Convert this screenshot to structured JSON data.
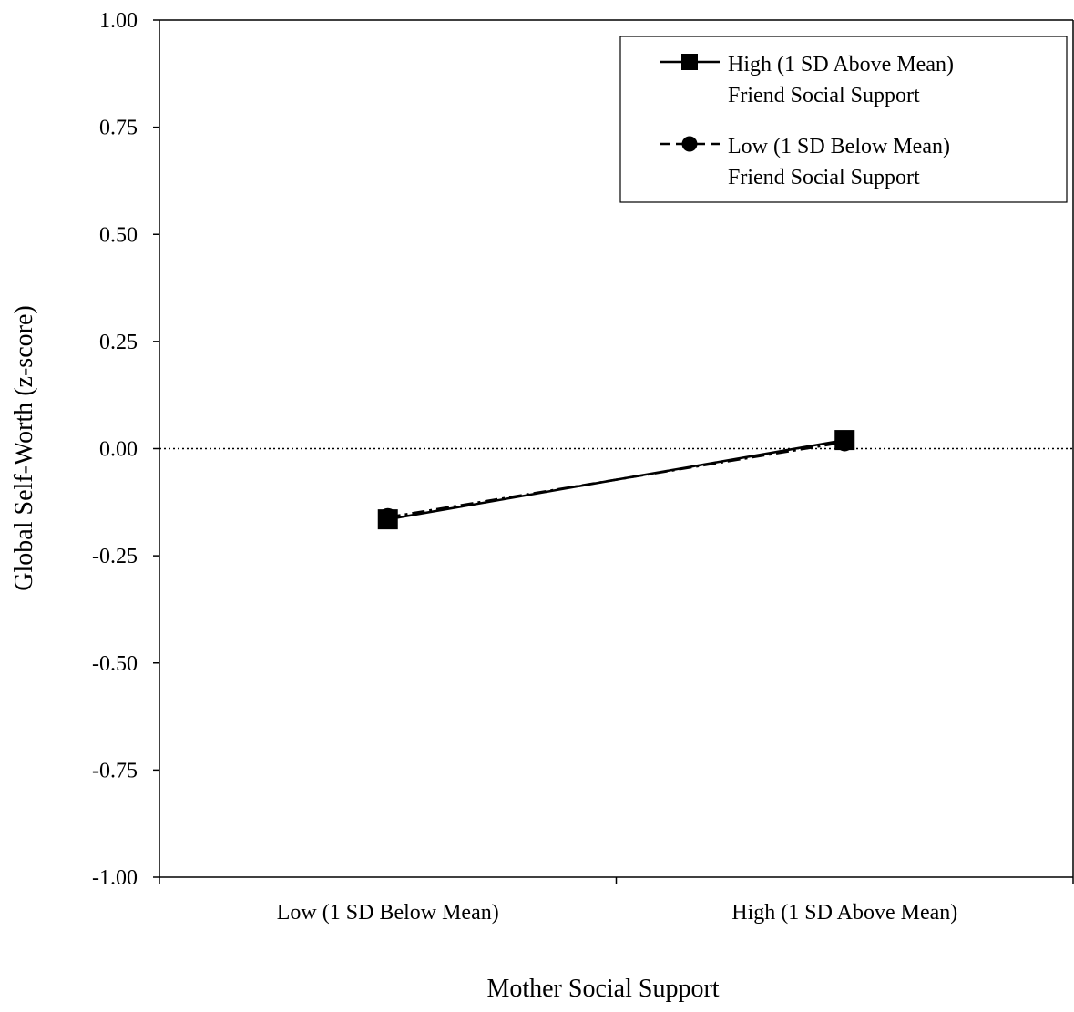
{
  "chart_data": {
    "type": "line",
    "title": "",
    "xlabel": "Mother Social Support",
    "ylabel": "Global Self-Worth (z-score)",
    "categories": [
      "Low (1 SD Below Mean)",
      "High (1 SD Above Mean)"
    ],
    "ylim": [
      -1.0,
      1.0
    ],
    "yticks": [
      1.0,
      0.75,
      0.5,
      0.25,
      0.0,
      -0.25,
      -0.5,
      -0.75,
      -1.0
    ],
    "ytick_labels": [
      "1.00",
      "0.75",
      "0.50",
      "0.25",
      "0.00",
      "-0.25",
      "-0.50",
      "-0.75",
      "-1.00"
    ],
    "reference_line": {
      "y": 0.0,
      "style": "dotted"
    },
    "grid": false,
    "legend_position": "top-right",
    "series": [
      {
        "name": "High (1 SD Above Mean) Friend Social Support",
        "legend_lines": [
          "High (1 SD Above Mean)",
          "Friend Social Support"
        ],
        "marker": "square",
        "line_style": "solid",
        "color": "#000000",
        "values": [
          -0.165,
          0.02
        ]
      },
      {
        "name": "Low (1 SD Below Mean) Friend Social Support",
        "legend_lines": [
          "Low (1 SD Below Mean)",
          "Friend Social Support"
        ],
        "marker": "circle",
        "line_style": "dash-dot",
        "color": "#000000",
        "values": [
          -0.16,
          0.015
        ]
      }
    ]
  }
}
